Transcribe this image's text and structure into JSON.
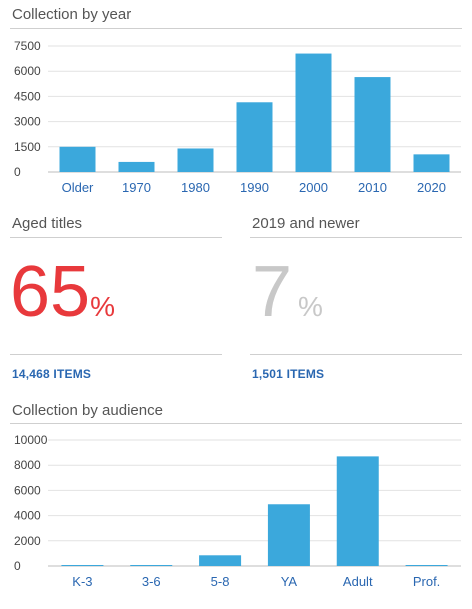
{
  "year_section": {
    "title": "Collection by year"
  },
  "aged": {
    "title": "Aged titles",
    "value": "65",
    "unit": "%",
    "items": "14,468 ITEMS",
    "color": "#e8393c"
  },
  "newer": {
    "title": "2019 and newer",
    "value": "7",
    "unit": "%",
    "items": "1,501 ITEMS",
    "color": "#c8c8c8"
  },
  "audience_section": {
    "title": "Collection by audience"
  },
  "bar_color": "#3ba8dc",
  "chart_data": [
    {
      "type": "bar",
      "title": "Collection by year",
      "categories": [
        "Older",
        "1970",
        "1980",
        "1990",
        "2000",
        "2010",
        "2020"
      ],
      "values": [
        1500,
        600,
        1400,
        4150,
        7050,
        5650,
        1050
      ],
      "yticks": [
        0,
        1500,
        3000,
        4500,
        6000,
        7500
      ],
      "ylim": [
        0,
        7500
      ],
      "grid": true
    },
    {
      "type": "bar",
      "title": "Collection by audience",
      "categories": [
        "K-3",
        "3-6",
        "5-8",
        "YA",
        "Adult",
        "Prof."
      ],
      "values": [
        20,
        60,
        850,
        4900,
        8700,
        30
      ],
      "yticks": [
        0,
        2000,
        4000,
        6000,
        8000,
        10000
      ],
      "ylim": [
        0,
        10000
      ],
      "grid": true
    }
  ]
}
